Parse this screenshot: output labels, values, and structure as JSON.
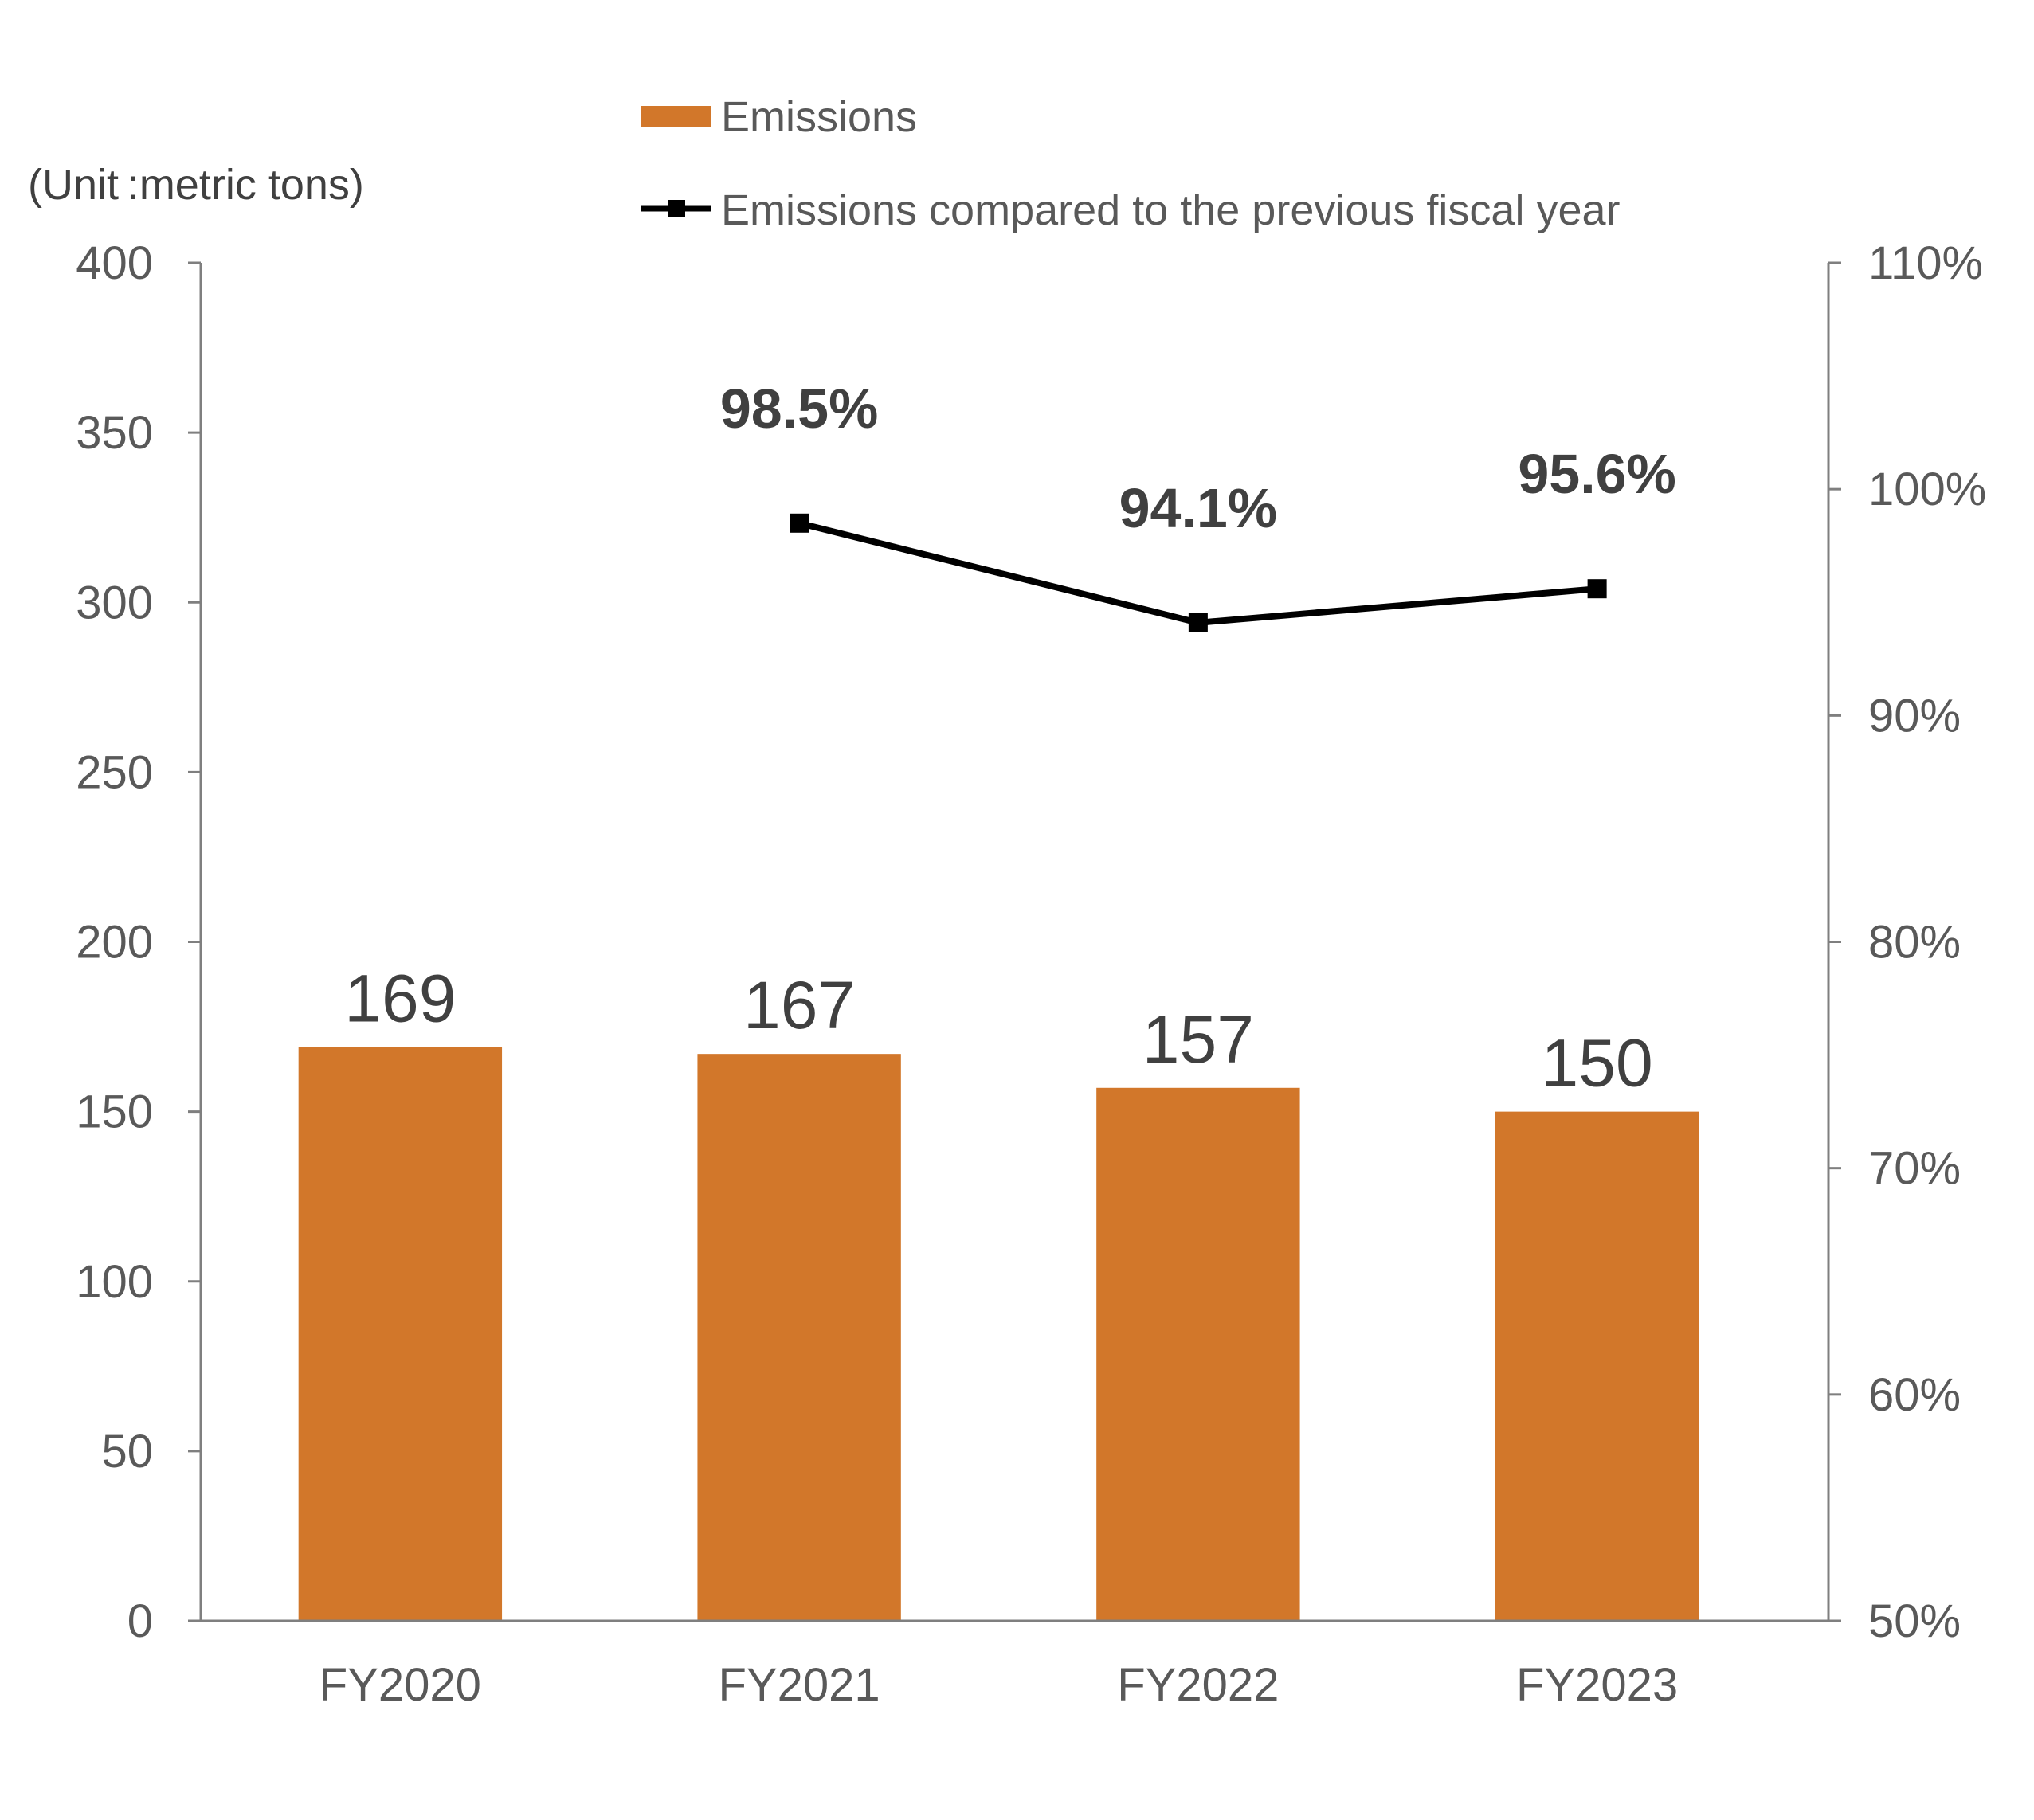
{
  "chart_data": {
    "type": "bar",
    "unit_label": "(Unit :metric tons)",
    "categories": [
      "FY2020",
      "FY2021",
      "FY2022",
      "FY2023"
    ],
    "series": [
      {
        "name": "Emissions",
        "type": "bar",
        "axis": "left",
        "color": "#D2772A",
        "values": [
          169,
          167,
          157,
          150
        ],
        "labels": [
          "169",
          "167",
          "157",
          "150"
        ]
      },
      {
        "name": "Emissions compared to the previous fiscal year",
        "type": "line",
        "axis": "right",
        "color": "#000000",
        "values": [
          null,
          98.5,
          94.1,
          95.6
        ],
        "labels": [
          "",
          "98.5%",
          "94.1%",
          "95.6%"
        ]
      }
    ],
    "y_left": {
      "ylim": [
        0,
        400
      ],
      "ticks": [
        "0",
        "50",
        "100",
        "150",
        "200",
        "250",
        "300",
        "350",
        "400"
      ]
    },
    "y_right": {
      "ylim": [
        50,
        110
      ],
      "ticks": [
        "50%",
        "60%",
        "70%",
        "80%",
        "90%",
        "100%",
        "110%"
      ]
    },
    "legend": {
      "placement": "top-center",
      "items": [
        "Emissions",
        "Emissions compared to the previous fiscal year"
      ]
    },
    "grid": false
  }
}
